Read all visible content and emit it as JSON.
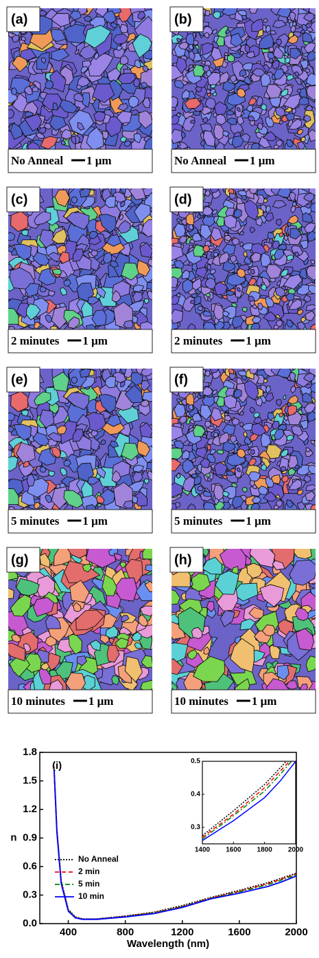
{
  "panels": [
    {
      "label": "(a)",
      "caption": "No Anneal",
      "scale": "1 μm"
    },
    {
      "label": "(b)",
      "caption": "No Anneal",
      "scale": "1 μm"
    },
    {
      "label": "(c)",
      "caption": "2 minutes",
      "scale": "1 μm"
    },
    {
      "label": "(d)",
      "caption": "2 minutes",
      "scale": "1 μm"
    },
    {
      "label": "(e)",
      "caption": "5 minutes",
      "scale": "1 μm"
    },
    {
      "label": "(f)",
      "caption": "5 minutes",
      "scale": "1 μm"
    },
    {
      "label": "(g)",
      "caption": "10 minutes",
      "scale": "1 μm"
    },
    {
      "label": "(h)",
      "caption": "10 minutes",
      "scale": "1 μm"
    }
  ],
  "chart_data": {
    "type": "line",
    "title": "(i)",
    "x_label": "Wavelength (nm)",
    "y_label": "n",
    "x": [
      300,
      320,
      350,
      400,
      450,
      500,
      600,
      800,
      1000,
      1200,
      1400,
      1600,
      1800,
      1900,
      2000
    ],
    "series": [
      {
        "name": "No Anneal",
        "color": "#000000",
        "dash": "dotted",
        "values": [
          1.65,
          1.0,
          0.45,
          0.15,
          0.07,
          0.05,
          0.05,
          0.08,
          0.12,
          0.19,
          0.275,
          0.35,
          0.43,
          0.48,
          0.53
        ]
      },
      {
        "name": "2 min",
        "color": "#ff0000",
        "dash": "dashed",
        "values": [
          1.64,
          0.99,
          0.44,
          0.14,
          0.065,
          0.048,
          0.048,
          0.077,
          0.115,
          0.18,
          0.27,
          0.34,
          0.42,
          0.47,
          0.52
        ]
      },
      {
        "name": "5 min",
        "color": "#008000",
        "dash": "dashdot",
        "values": [
          1.63,
          0.98,
          0.43,
          0.14,
          0.063,
          0.047,
          0.047,
          0.075,
          0.112,
          0.178,
          0.265,
          0.335,
          0.41,
          0.46,
          0.515
        ]
      },
      {
        "name": "10 min",
        "color": "#0000ff",
        "dash": "solid",
        "values": [
          1.62,
          0.96,
          0.42,
          0.13,
          0.06,
          0.045,
          0.045,
          0.07,
          0.105,
          0.17,
          0.26,
          0.32,
          0.39,
          0.44,
          0.5
        ]
      }
    ],
    "xlim": [
      200,
      2000
    ],
    "ylim": [
      0,
      1.8
    ],
    "xticks": [
      400,
      800,
      1200,
      1600,
      2000
    ],
    "yticks": [
      {
        "value": 0,
        "label": "0.0"
      },
      0.3,
      0.6,
      0.9,
      1.2,
      1.5,
      1.8
    ],
    "inset": {
      "xlim": [
        1400,
        2000
      ],
      "ylim": [
        0.25,
        0.5
      ],
      "xticks": [
        1400,
        1600,
        1800,
        2000
      ],
      "yticks": [
        0.3,
        0.4,
        0.5
      ]
    }
  }
}
